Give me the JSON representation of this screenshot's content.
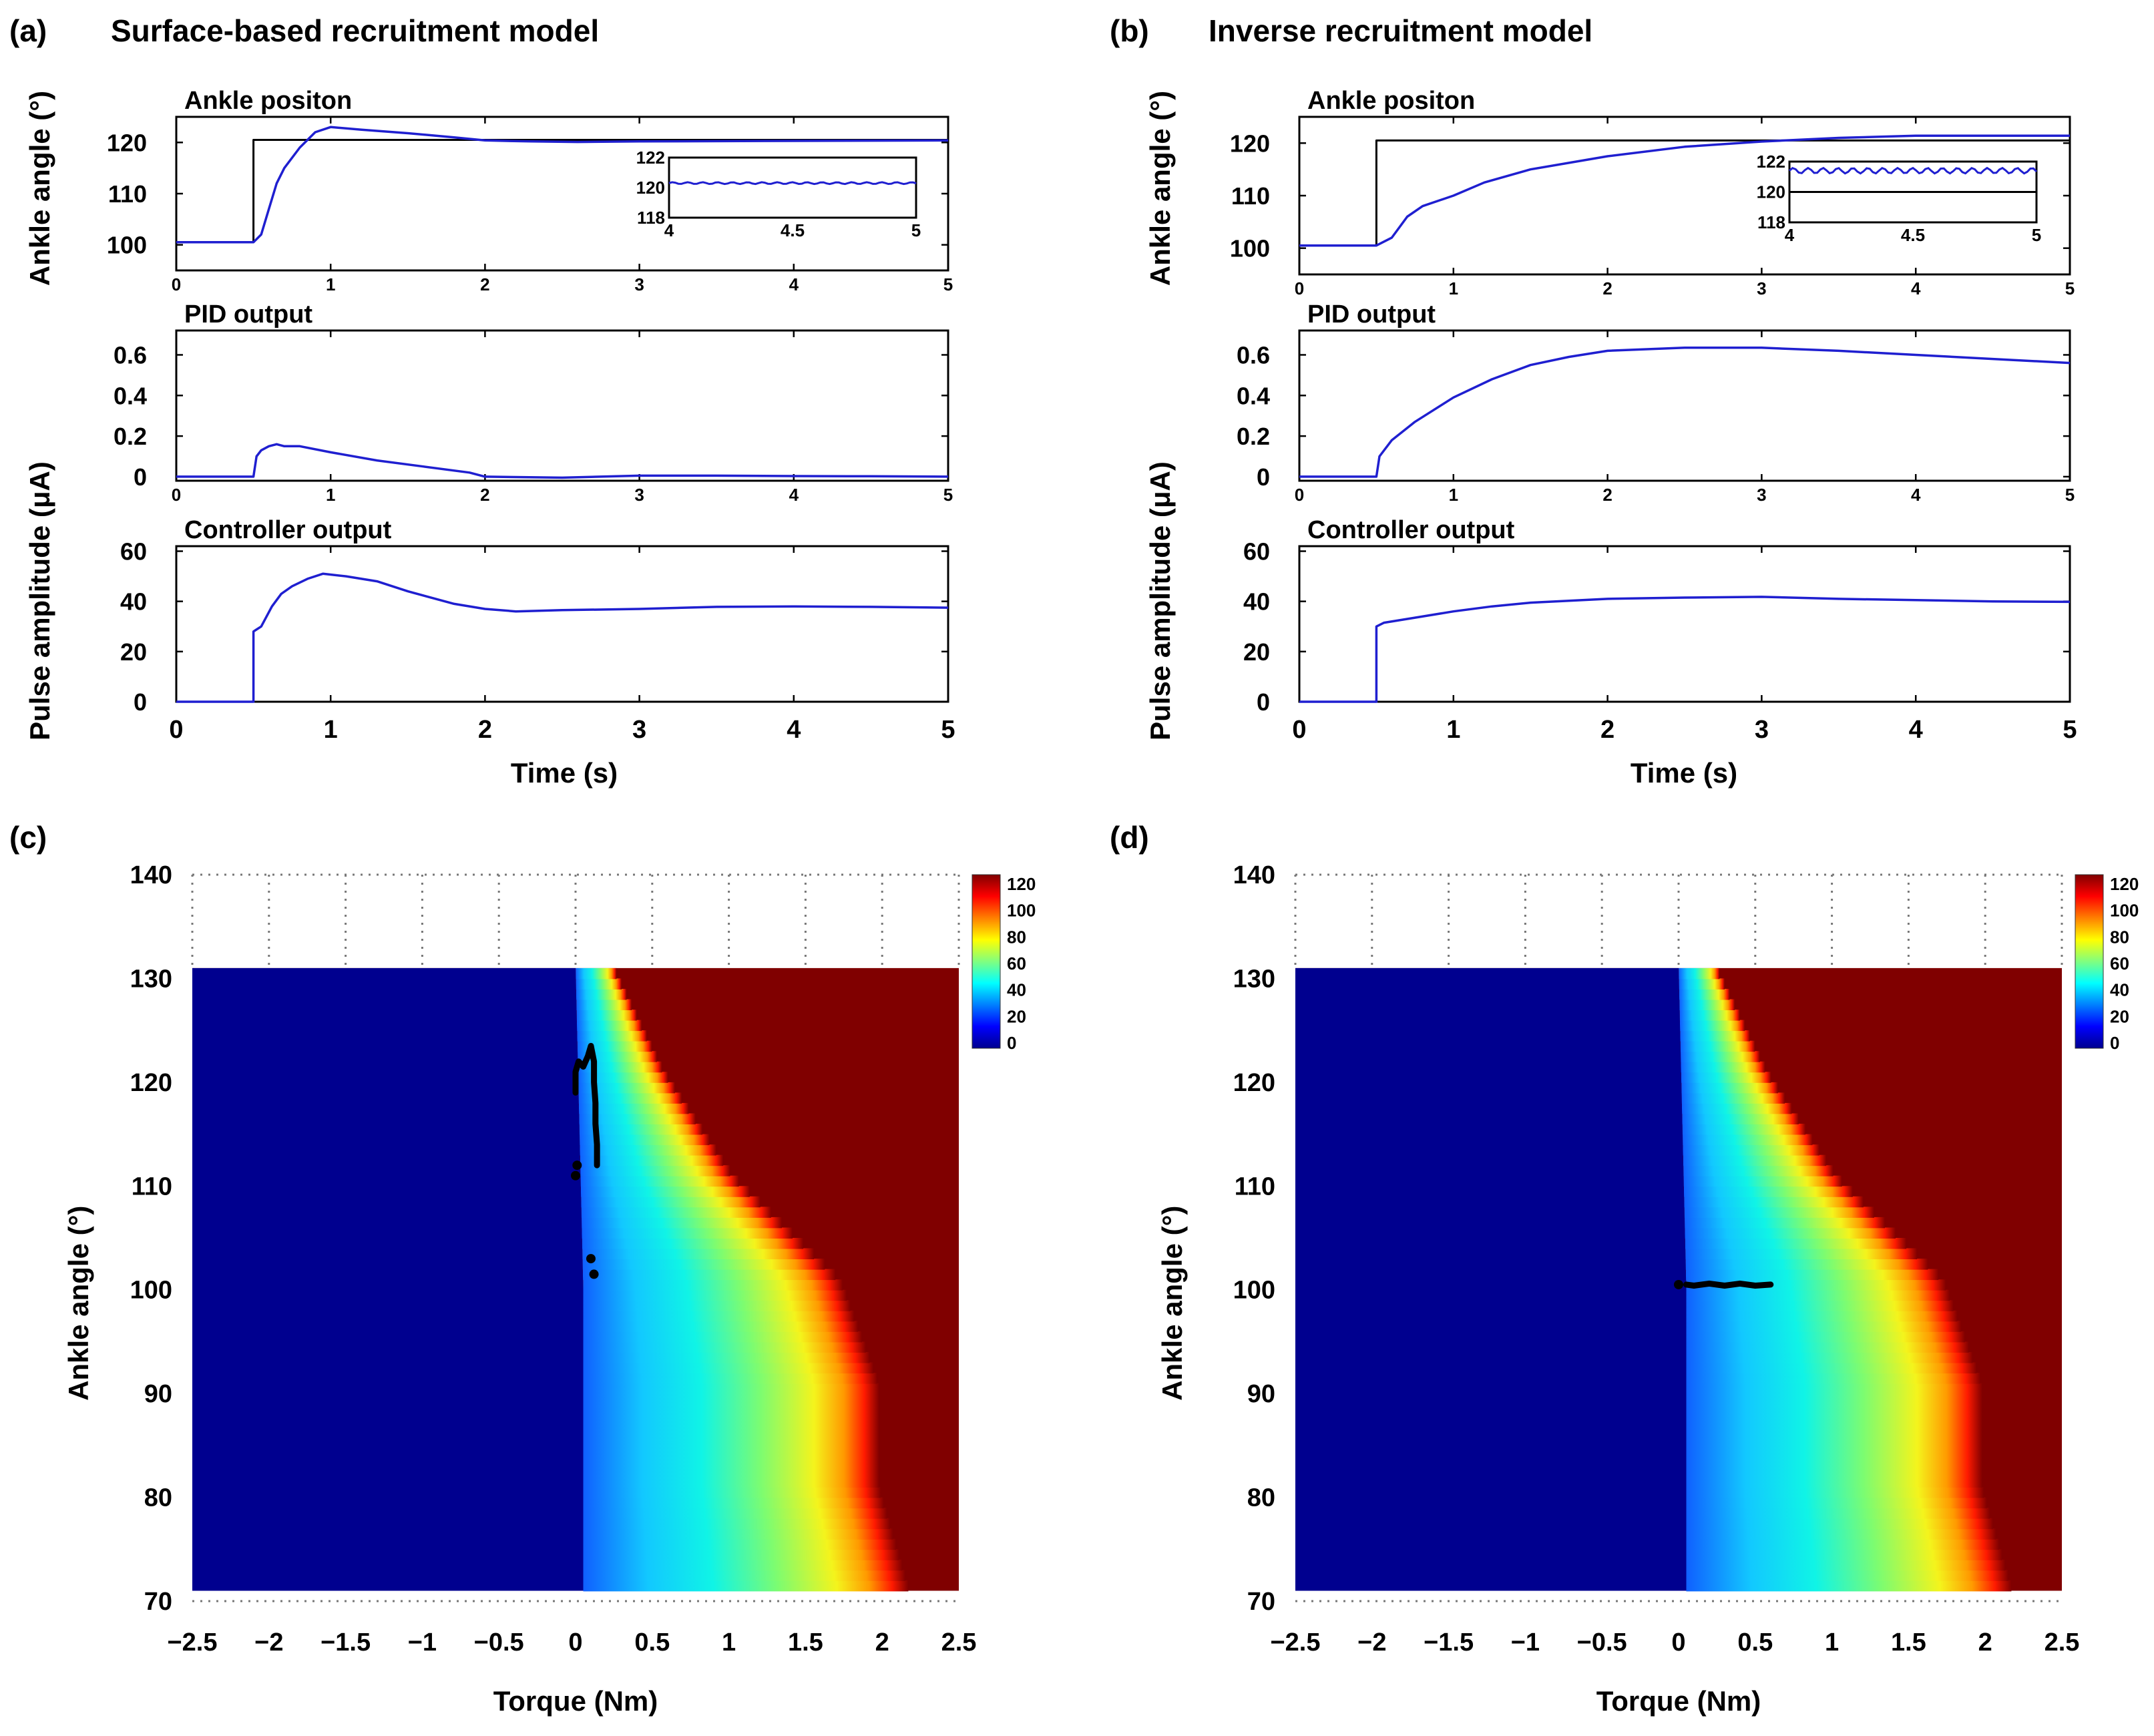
{
  "panels": {
    "a": {
      "letter": "(a)",
      "title": "Surface-based recruitment model"
    },
    "b": {
      "letter": "(b)",
      "title": "Inverse recruitment model"
    },
    "c": {
      "letter": "(c)"
    },
    "d": {
      "letter": "(d)"
    }
  },
  "colors": {
    "trace": "#1f1fd0",
    "reference": "#000000",
    "axis": "#000000"
  },
  "chart_data": [
    {
      "id": "a-ankle",
      "type": "line",
      "title": "Ankle positon",
      "ylabel": "Ankle angle (°)",
      "xlabel": "",
      "xlim": [
        0,
        5
      ],
      "ylim": [
        95,
        125
      ],
      "xticks": [
        0,
        1,
        2,
        3,
        4,
        5
      ],
      "xtick_labels": [
        "0",
        "1",
        "2",
        "3",
        "4",
        "5"
      ],
      "yticks": [
        100,
        110,
        120
      ],
      "ytick_labels": [
        "100",
        "110",
        "120"
      ],
      "series": [
        {
          "name": "reference",
          "color": "#000000",
          "x": [
            0,
            0.5,
            0.5,
            5
          ],
          "y": [
            100.5,
            100.5,
            120.5,
            120.5
          ]
        },
        {
          "name": "ankle",
          "color": "#1f1fd0",
          "x": [
            0,
            0.5,
            0.55,
            0.6,
            0.65,
            0.7,
            0.8,
            0.9,
            1.0,
            1.2,
            1.5,
            1.8,
            2.0,
            2.3,
            2.6,
            3,
            4,
            5
          ],
          "y": [
            100.5,
            100.5,
            102,
            107,
            112,
            115,
            119,
            122,
            123,
            122.5,
            121.8,
            121,
            120.4,
            120.2,
            120.1,
            120.2,
            120.3,
            120.4
          ]
        }
      ],
      "inset": {
        "xlim": [
          4,
          5
        ],
        "ylim": [
          118,
          122
        ],
        "xtick_labels": [
          "4",
          "4.5",
          "5"
        ],
        "ytick_labels": [
          "118",
          "120",
          "122"
        ],
        "x": [
          4,
          4.25,
          4.5,
          4.75,
          5
        ],
        "y": [
          120.3,
          120.35,
          120.3,
          120.35,
          120.3
        ]
      }
    },
    {
      "id": "a-pid",
      "type": "line",
      "title": "PID output",
      "ylabel": "",
      "xlabel": "",
      "xlim": [
        0,
        5
      ],
      "ylim": [
        -0.02,
        0.72
      ],
      "xticks": [
        0,
        1,
        2,
        3,
        4,
        5
      ],
      "xtick_labels": [
        "0",
        "1",
        "2",
        "3",
        "4",
        "5"
      ],
      "yticks": [
        0,
        0.2,
        0.4,
        0.6
      ],
      "ytick_labels": [
        "0",
        "0.2",
        "0.4",
        "0.6"
      ],
      "series": [
        {
          "name": "pid",
          "color": "#1f1fd0",
          "x": [
            0,
            0.5,
            0.52,
            0.55,
            0.6,
            0.65,
            0.7,
            0.8,
            1.0,
            1.3,
            1.6,
            1.9,
            2.0,
            2.5,
            3,
            3.5,
            4,
            4.5,
            5
          ],
          "y": [
            0,
            0,
            0.1,
            0.13,
            0.15,
            0.16,
            0.15,
            0.15,
            0.12,
            0.08,
            0.05,
            0.02,
            0.0,
            -0.005,
            0.005,
            0.005,
            0.003,
            0.002,
            0.0
          ]
        }
      ]
    },
    {
      "id": "a-ctrl",
      "type": "line",
      "title": "Controller output",
      "ylabel": "Pulse amplitude (μA)",
      "xlabel": "Time (s)",
      "xlim": [
        0,
        5
      ],
      "ylim": [
        0,
        62
      ],
      "xticks": [
        0,
        1,
        2,
        3,
        4,
        5
      ],
      "xtick_labels": [
        "0",
        "1",
        "2",
        "3",
        "4",
        "5"
      ],
      "yticks": [
        0,
        20,
        40,
        60
      ],
      "ytick_labels": [
        "0",
        "20",
        "40",
        "60"
      ],
      "series": [
        {
          "name": "controller",
          "color": "#1f1fd0",
          "x": [
            0,
            0.5,
            0.5,
            0.55,
            0.62,
            0.68,
            0.75,
            0.85,
            0.95,
            1.1,
            1.3,
            1.5,
            1.8,
            2.0,
            2.2,
            2.5,
            3,
            3.5,
            4,
            4.5,
            5
          ],
          "y": [
            0,
            0,
            28,
            30,
            38,
            43,
            46,
            49,
            51,
            50,
            48,
            44,
            39,
            37,
            36,
            36.5,
            37,
            37.8,
            38,
            37.8,
            37.5
          ]
        }
      ]
    },
    {
      "id": "b-ankle",
      "type": "line",
      "title": "Ankle positon",
      "ylabel": "Ankle angle (°)",
      "xlabel": "",
      "xlim": [
        0,
        5
      ],
      "ylim": [
        95,
        125
      ],
      "xticks": [
        0,
        1,
        2,
        3,
        4,
        5
      ],
      "xtick_labels": [
        "0",
        "1",
        "2",
        "3",
        "4",
        "5"
      ],
      "yticks": [
        100,
        110,
        120
      ],
      "ytick_labels": [
        "100",
        "110",
        "120"
      ],
      "series": [
        {
          "name": "reference",
          "color": "#000000",
          "x": [
            0,
            0.5,
            0.5,
            5
          ],
          "y": [
            100.5,
            100.5,
            120.5,
            120.5
          ]
        },
        {
          "name": "ankle",
          "color": "#1f1fd0",
          "x": [
            0,
            0.5,
            0.6,
            0.7,
            0.8,
            1.0,
            1.2,
            1.5,
            2.0,
            2.5,
            3.0,
            3.5,
            4.0,
            4.5,
            5
          ],
          "y": [
            100.5,
            100.5,
            102,
            106,
            108,
            110,
            112.5,
            115,
            117.5,
            119.3,
            120.3,
            121,
            121.4,
            121.4,
            121.4
          ]
        }
      ],
      "inset": {
        "xlim": [
          4,
          5
        ],
        "ylim": [
          118,
          122
        ],
        "xtick_labels": [
          "4",
          "4.5",
          "5"
        ],
        "ytick_labels": [
          "118",
          "120",
          "122"
        ],
        "x": [
          4,
          4.25,
          4.5,
          4.75,
          5
        ],
        "y": [
          121.4,
          121.5,
          121.4,
          121.5,
          121.4
        ]
      }
    },
    {
      "id": "b-pid",
      "type": "line",
      "title": "PID output",
      "ylabel": "",
      "xlabel": "",
      "xlim": [
        0,
        5
      ],
      "ylim": [
        -0.02,
        0.72
      ],
      "xticks": [
        0,
        1,
        2,
        3,
        4,
        5
      ],
      "xtick_labels": [
        "0",
        "1",
        "2",
        "3",
        "4",
        "5"
      ],
      "yticks": [
        0,
        0.2,
        0.4,
        0.6
      ],
      "ytick_labels": [
        "0",
        "0.2",
        "0.4",
        "0.6"
      ],
      "series": [
        {
          "name": "pid",
          "color": "#1f1fd0",
          "x": [
            0,
            0.5,
            0.52,
            0.6,
            0.75,
            1.0,
            1.25,
            1.5,
            1.75,
            2.0,
            2.5,
            3.0,
            3.5,
            4.0,
            4.5,
            5
          ],
          "y": [
            0,
            0,
            0.1,
            0.18,
            0.27,
            0.39,
            0.48,
            0.55,
            0.59,
            0.62,
            0.635,
            0.635,
            0.62,
            0.6,
            0.58,
            0.56
          ]
        }
      ]
    },
    {
      "id": "b-ctrl",
      "type": "line",
      "title": "Controller output",
      "ylabel": "Pulse amplitude (μA)",
      "xlabel": "Time (s)",
      "xlim": [
        0,
        5
      ],
      "ylim": [
        0,
        62
      ],
      "xticks": [
        0,
        1,
        2,
        3,
        4,
        5
      ],
      "xtick_labels": [
        "0",
        "1",
        "2",
        "3",
        "4",
        "5"
      ],
      "yticks": [
        0,
        20,
        40,
        60
      ],
      "ytick_labels": [
        "0",
        "20",
        "40",
        "60"
      ],
      "series": [
        {
          "name": "controller",
          "color": "#1f1fd0",
          "x": [
            0,
            0.5,
            0.5,
            0.55,
            0.75,
            1.0,
            1.25,
            1.5,
            2.0,
            2.5,
            3.0,
            3.5,
            4.0,
            4.5,
            5
          ],
          "y": [
            0,
            0,
            30,
            31.5,
            33.5,
            36,
            38,
            39.5,
            41,
            41.5,
            41.8,
            41,
            40.5,
            40,
            39.8
          ]
        }
      ]
    },
    {
      "id": "c-heatmap",
      "type": "heatmap",
      "xlabel": "Torque (Nm)",
      "ylabel": "Ankle angle (°)",
      "xlim": [
        -2.5,
        2.5
      ],
      "ylim": [
        70,
        140
      ],
      "xticks": [
        -2.5,
        -2,
        -1.5,
        -1,
        -0.5,
        0,
        0.5,
        1,
        1.5,
        2,
        2.5
      ],
      "xtick_labels": [
        "−2.5",
        "−2",
        "−1.5",
        "−1",
        "−0.5",
        "0",
        "0.5",
        "1",
        "1.5",
        "2",
        "2.5"
      ],
      "yticks": [
        70,
        80,
        90,
        100,
        110,
        120,
        130,
        140
      ],
      "ytick_labels": [
        "70",
        "80",
        "90",
        "100",
        "110",
        "120",
        "130",
        "140"
      ],
      "map_yrange": [
        71,
        131
      ],
      "zero_boundary": {
        "angle": [
          71,
          100,
          131
        ],
        "torque": [
          0.05,
          0.05,
          0.0
        ]
      },
      "saturation_boundary": {
        "angle": [
          71,
          81,
          91,
          101,
          111,
          121,
          131
        ],
        "torque": [
          2.05,
          1.85,
          1.85,
          1.6,
          0.9,
          0.45,
          0.12
        ]
      },
      "colorbar": {
        "ticks": [
          0,
          20,
          40,
          60,
          80,
          100,
          120
        ],
        "tick_labels": [
          "0",
          "20",
          "40",
          "60",
          "80",
          "100",
          "120"
        ]
      },
      "trajectory": {
        "torque": [
          0.0,
          0.0,
          0.02,
          0.05,
          0.08,
          0.1,
          0.12,
          0.12,
          0.13,
          0.13,
          0.14,
          0.14
        ],
        "angle": [
          119,
          121,
          122,
          121.5,
          122.5,
          123.5,
          122,
          120,
          118,
          116,
          114,
          112
        ]
      },
      "trajectory_points": {
        "torque": [
          0.0,
          0.01,
          0.1,
          0.12
        ],
        "angle": [
          111,
          112,
          103,
          101.5
        ]
      }
    },
    {
      "id": "d-heatmap",
      "type": "heatmap",
      "xlabel": "Torque (Nm)",
      "ylabel": "Ankle angle (°)",
      "xlim": [
        -2.5,
        2.5
      ],
      "ylim": [
        70,
        140
      ],
      "xticks": [
        -2.5,
        -2,
        -1.5,
        -1,
        -0.5,
        0,
        0.5,
        1,
        1.5,
        2,
        2.5
      ],
      "xtick_labels": [
        "−2.5",
        "−2",
        "−1.5",
        "−1",
        "−0.5",
        "0",
        "0.5",
        "1",
        "1.5",
        "2",
        "2.5"
      ],
      "yticks": [
        70,
        80,
        90,
        100,
        110,
        120,
        130,
        140
      ],
      "ytick_labels": [
        "70",
        "80",
        "90",
        "100",
        "110",
        "120",
        "130",
        "140"
      ],
      "map_yrange": [
        71,
        131
      ],
      "zero_boundary": {
        "angle": [
          71,
          100,
          131
        ],
        "torque": [
          0.05,
          0.05,
          0.0
        ]
      },
      "saturation_boundary": {
        "angle": [
          71,
          81,
          91,
          101,
          111,
          121,
          131
        ],
        "torque": [
          2.05,
          1.85,
          1.85,
          1.6,
          0.9,
          0.45,
          0.12
        ]
      },
      "colorbar": {
        "ticks": [
          0,
          20,
          40,
          60,
          80,
          100,
          120
        ],
        "tick_labels": [
          "0",
          "20",
          "40",
          "60",
          "80",
          "100",
          "120"
        ]
      },
      "trajectory": {
        "torque": [
          0.05,
          0.1,
          0.2,
          0.3,
          0.4,
          0.5,
          0.6
        ],
        "angle": [
          100.5,
          100.4,
          100.6,
          100.4,
          100.6,
          100.4,
          100.5
        ]
      },
      "trajectory_points": {
        "torque": [
          0.0
        ],
        "angle": [
          100.5
        ]
      }
    }
  ]
}
